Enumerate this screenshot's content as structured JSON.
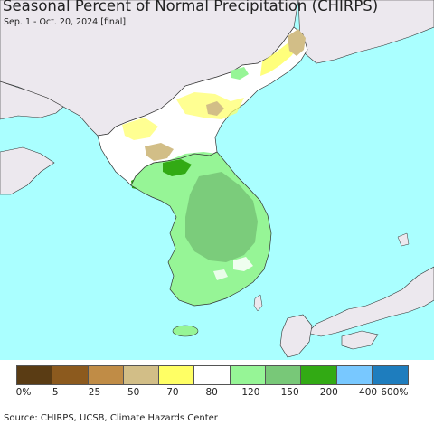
{
  "title": "Seasonal Percent of Normal Precipitation (CHIRPS)",
  "subtitle": "Sep. 1 - Oct. 20, 2024 [final]",
  "legend": {
    "colors": [
      "#5a3c14",
      "#8c5a1e",
      "#c08c46",
      "#d2be87",
      "#ffff64",
      "#ffffff",
      "#96f596",
      "#78c878",
      "#32aa14",
      "#78c8ff",
      "#1e7dbe"
    ],
    "labels": [
      "0%",
      "5",
      "25",
      "50",
      "70",
      "80",
      "120",
      "150",
      "200",
      "400",
      "600%"
    ]
  },
  "source": "Source: CHIRPS, UCSB, Climate Hazards Center",
  "map_colors": {
    "sea": "#aaffff",
    "land_no_data": "#ece8ee",
    "border": "#333333"
  }
}
